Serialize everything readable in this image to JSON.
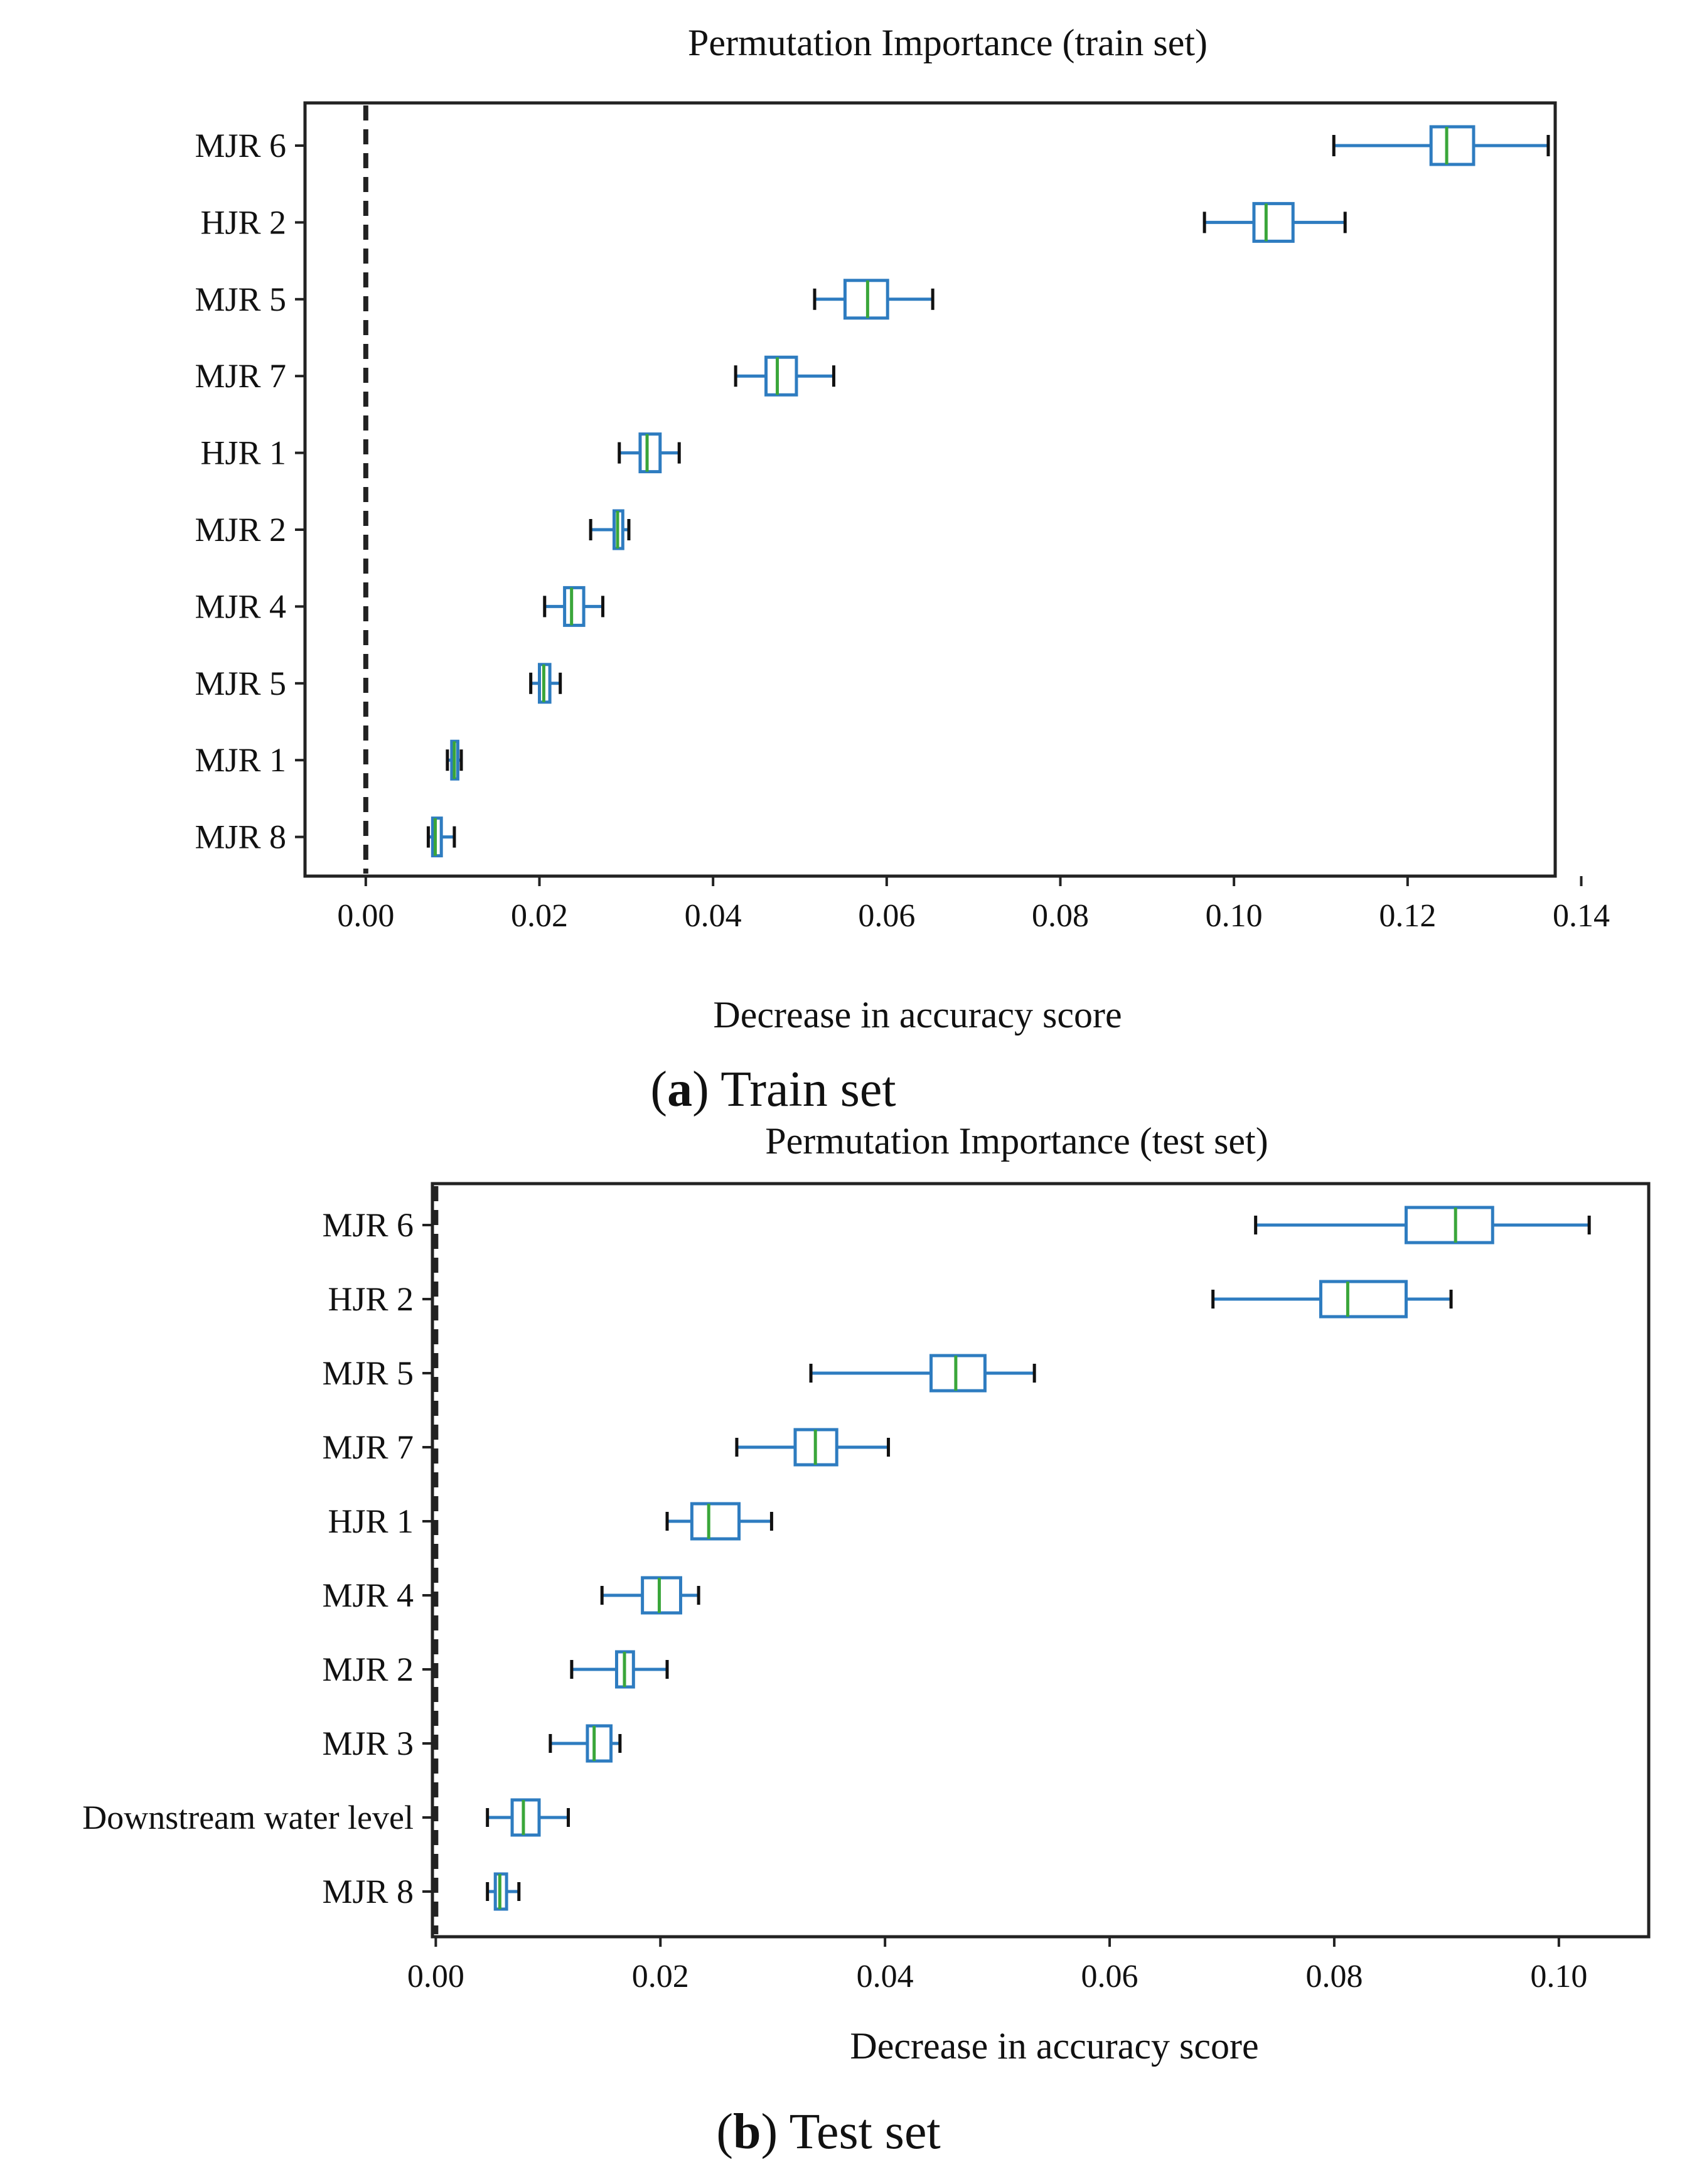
{
  "chart_data": [
    {
      "type": "boxplot",
      "orientation": "horizontal",
      "title": "Permutation Importance (train set)",
      "xlabel": "Decrease in accuracy score",
      "xlim": [
        -0.007,
        0.137
      ],
      "xticks": [
        0.0,
        0.02,
        0.04,
        0.06,
        0.08,
        0.1,
        0.12,
        0.14
      ],
      "xtick_labels": [
        "0.00",
        "0.02",
        "0.04",
        "0.06",
        "0.08",
        "0.10",
        "0.12",
        "0.14"
      ],
      "reference_line": 0.0,
      "caption_letter": "a",
      "caption_text": "Train set",
      "categories": [
        "MJR 6",
        "HJR 2",
        "MJR 5",
        "MJR 7",
        "HJR 1",
        "MJR 2",
        "MJR 4",
        "MJR 5",
        "MJR 1",
        "MJR 8"
      ],
      "boxes": [
        {
          "min": 0.1115,
          "q1": 0.1227,
          "median": 0.1245,
          "q3": 0.1276,
          "max": 0.1362
        },
        {
          "min": 0.0966,
          "q1": 0.1023,
          "median": 0.1037,
          "q3": 0.1068,
          "max": 0.1128
        },
        {
          "min": 0.0517,
          "q1": 0.0552,
          "median": 0.0578,
          "q3": 0.0601,
          "max": 0.0653
        },
        {
          "min": 0.0426,
          "q1": 0.0461,
          "median": 0.0474,
          "q3": 0.0496,
          "max": 0.0539
        },
        {
          "min": 0.0292,
          "q1": 0.0316,
          "median": 0.0324,
          "q3": 0.0339,
          "max": 0.0361
        },
        {
          "min": 0.0259,
          "q1": 0.0286,
          "median": 0.029,
          "q3": 0.0296,
          "max": 0.0303
        },
        {
          "min": 0.0206,
          "q1": 0.0229,
          "median": 0.0237,
          "q3": 0.0251,
          "max": 0.0273
        },
        {
          "min": 0.019,
          "q1": 0.02,
          "median": 0.0205,
          "q3": 0.0212,
          "max": 0.0224
        },
        {
          "min": 0.0094,
          "q1": 0.0099,
          "median": 0.0102,
          "q3": 0.0106,
          "max": 0.011
        },
        {
          "min": 0.0072,
          "q1": 0.0077,
          "median": 0.008,
          "q3": 0.0087,
          "max": 0.0102
        }
      ]
    },
    {
      "type": "boxplot",
      "orientation": "horizontal",
      "title": "Permutation Importance (test set)",
      "xlabel": "Decrease in accuracy score",
      "xlim": [
        -0.0003,
        0.108
      ],
      "xticks": [
        0.0,
        0.02,
        0.04,
        0.06,
        0.08,
        0.1
      ],
      "xtick_labels": [
        "0.00",
        "0.02",
        "0.04",
        "0.06",
        "0.08",
        "0.10"
      ],
      "reference_line": 0.0,
      "caption_letter": "b",
      "caption_text": "Test set",
      "categories": [
        "MJR 6",
        "HJR 2",
        "MJR 5",
        "MJR 7",
        "HJR 1",
        "MJR 4",
        "MJR 2",
        "MJR 3",
        "Downstream water level",
        "MJR 8"
      ],
      "boxes": [
        {
          "min": 0.073,
          "q1": 0.0864,
          "median": 0.0908,
          "q3": 0.0941,
          "max": 0.1027
        },
        {
          "min": 0.0692,
          "q1": 0.0788,
          "median": 0.0812,
          "q3": 0.0864,
          "max": 0.0904
        },
        {
          "min": 0.0334,
          "q1": 0.0441,
          "median": 0.0463,
          "q3": 0.0489,
          "max": 0.0533
        },
        {
          "min": 0.0268,
          "q1": 0.032,
          "median": 0.0338,
          "q3": 0.0357,
          "max": 0.0403
        },
        {
          "min": 0.0206,
          "q1": 0.0228,
          "median": 0.0243,
          "q3": 0.027,
          "max": 0.0299
        },
        {
          "min": 0.0148,
          "q1": 0.0184,
          "median": 0.0199,
          "q3": 0.0218,
          "max": 0.0234
        },
        {
          "min": 0.0121,
          "q1": 0.0161,
          "median": 0.0168,
          "q3": 0.0176,
          "max": 0.0206
        },
        {
          "min": 0.0102,
          "q1": 0.0135,
          "median": 0.0141,
          "q3": 0.0156,
          "max": 0.0164
        },
        {
          "min": 0.0046,
          "q1": 0.0068,
          "median": 0.0078,
          "q3": 0.0092,
          "max": 0.0118
        },
        {
          "min": 0.0046,
          "q1": 0.0053,
          "median": 0.0057,
          "q3": 0.0063,
          "max": 0.0074
        }
      ]
    }
  ]
}
